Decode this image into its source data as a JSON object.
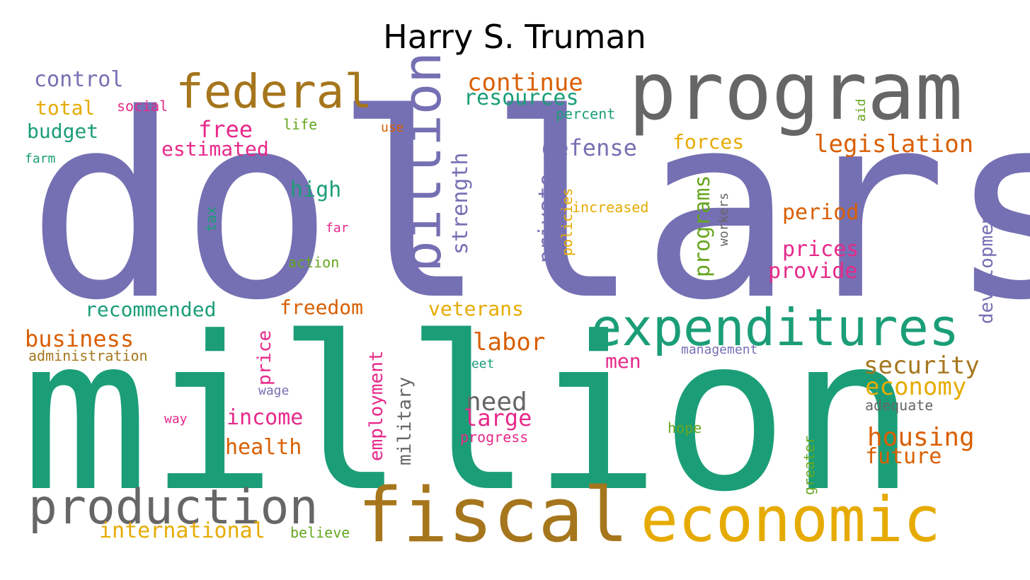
{
  "title": "Harry S. Truman",
  "palette": {
    "purple": "#7570b3",
    "teal": "#1b9e77",
    "orange": "#d95f02",
    "pink": "#e7298a",
    "green": "#66a61e",
    "gold": "#e6ab02",
    "brown": "#a6761d",
    "gray": "#666666"
  },
  "words": [
    {
      "text": "dollars",
      "color": "purple"
    },
    {
      "text": "million",
      "color": "teal"
    },
    {
      "text": "program",
      "color": "gray"
    },
    {
      "text": "fiscal",
      "color": "brown"
    },
    {
      "text": "economic",
      "color": "gold"
    },
    {
      "text": "expenditures",
      "color": "teal"
    },
    {
      "text": "production",
      "color": "gray"
    },
    {
      "text": "federal",
      "color": "brown"
    },
    {
      "text": "billion",
      "color": "purple"
    },
    {
      "text": "legislation",
      "color": "orange"
    },
    {
      "text": "continue",
      "color": "orange"
    },
    {
      "text": "defense",
      "color": "purple"
    },
    {
      "text": "resources",
      "color": "teal"
    },
    {
      "text": "control",
      "color": "purple"
    },
    {
      "text": "total",
      "color": "gold"
    },
    {
      "text": "social",
      "color": "pink"
    },
    {
      "text": "budget",
      "color": "teal"
    },
    {
      "text": "free",
      "color": "pink"
    },
    {
      "text": "estimated",
      "color": "pink"
    },
    {
      "text": "life",
      "color": "green"
    },
    {
      "text": "use",
      "color": "orange"
    },
    {
      "text": "percent",
      "color": "teal"
    },
    {
      "text": "aid",
      "color": "green"
    },
    {
      "text": "farm",
      "color": "teal"
    },
    {
      "text": "forces",
      "color": "gold"
    },
    {
      "text": "strength",
      "color": "purple"
    },
    {
      "text": "private",
      "color": "purple"
    },
    {
      "text": "high",
      "color": "teal"
    },
    {
      "text": "tax",
      "color": "teal"
    },
    {
      "text": "far",
      "color": "pink"
    },
    {
      "text": "action",
      "color": "green"
    },
    {
      "text": "policies",
      "color": "gold"
    },
    {
      "text": "increased",
      "color": "gold"
    },
    {
      "text": "programs",
      "color": "green"
    },
    {
      "text": "workers",
      "color": "gray"
    },
    {
      "text": "period",
      "color": "orange"
    },
    {
      "text": "prices",
      "color": "pink"
    },
    {
      "text": "provide",
      "color": "pink"
    },
    {
      "text": "development",
      "color": "purple"
    },
    {
      "text": "recommended",
      "color": "teal"
    },
    {
      "text": "freedom",
      "color": "orange"
    },
    {
      "text": "veterans",
      "color": "gold"
    },
    {
      "text": "business",
      "color": "orange"
    },
    {
      "text": "administration",
      "color": "brown"
    },
    {
      "text": "price",
      "color": "pink"
    },
    {
      "text": "employment",
      "color": "pink"
    },
    {
      "text": "military",
      "color": "gray"
    },
    {
      "text": "labor",
      "color": "orange"
    },
    {
      "text": "management",
      "color": "purple"
    },
    {
      "text": "meet",
      "color": "teal"
    },
    {
      "text": "men",
      "color": "pink"
    },
    {
      "text": "security",
      "color": "brown"
    },
    {
      "text": "economy",
      "color": "gold"
    },
    {
      "text": "wage",
      "color": "purple"
    },
    {
      "text": "need",
      "color": "gray"
    },
    {
      "text": "adequate",
      "color": "gray"
    },
    {
      "text": "income",
      "color": "pink"
    },
    {
      "text": "way",
      "color": "pink"
    },
    {
      "text": "large",
      "color": "pink"
    },
    {
      "text": "hope",
      "color": "green"
    },
    {
      "text": "housing",
      "color": "orange"
    },
    {
      "text": "progress",
      "color": "pink"
    },
    {
      "text": "health",
      "color": "orange"
    },
    {
      "text": "greater",
      "color": "green"
    },
    {
      "text": "future",
      "color": "orange"
    },
    {
      "text": "international",
      "color": "gold"
    },
    {
      "text": "believe",
      "color": "green"
    }
  ]
}
